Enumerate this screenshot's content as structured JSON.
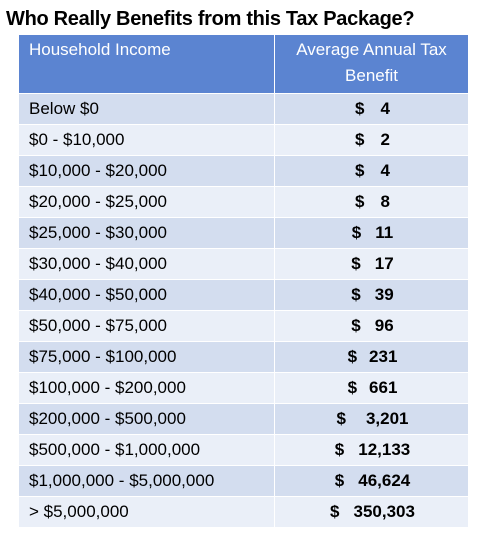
{
  "title": "Who Really Benefits from this Tax Package?",
  "table": {
    "headers": {
      "income": "Household Income",
      "benefit": "Average Annual Tax Benefit"
    },
    "currency_symbol": "$",
    "colors": {
      "header": "#5b84d1",
      "row_dark": "#d3ddef",
      "row_light": "#eaeff8"
    },
    "rows": [
      {
        "income": "Below $0",
        "benefit": "4"
      },
      {
        "income": "$0 - $10,000",
        "benefit": "2"
      },
      {
        "income": "$10,000 - $20,000",
        "benefit": "4"
      },
      {
        "income": "$20,000 - $25,000",
        "benefit": "8"
      },
      {
        "income": "$25,000 - $30,000",
        "benefit": "11"
      },
      {
        "income": "$30,000 - $40,000",
        "benefit": "17"
      },
      {
        "income": "$40,000 - $50,000",
        "benefit": "39"
      },
      {
        "income": "$50,000 - $75,000",
        "benefit": "96"
      },
      {
        "income": "$75,000 - $100,000",
        "benefit": "231"
      },
      {
        "income": "$100,000 - $200,000",
        "benefit": "661"
      },
      {
        "income": "$200,000 - $500,000",
        "benefit": "3,201"
      },
      {
        "income": "$500,000 - $1,000,000",
        "benefit": "12,133"
      },
      {
        "income": "$1,000,000 - $5,000,000",
        "benefit": "46,624"
      },
      {
        "income": "> $5,000,000",
        "benefit": "350,303"
      }
    ]
  }
}
